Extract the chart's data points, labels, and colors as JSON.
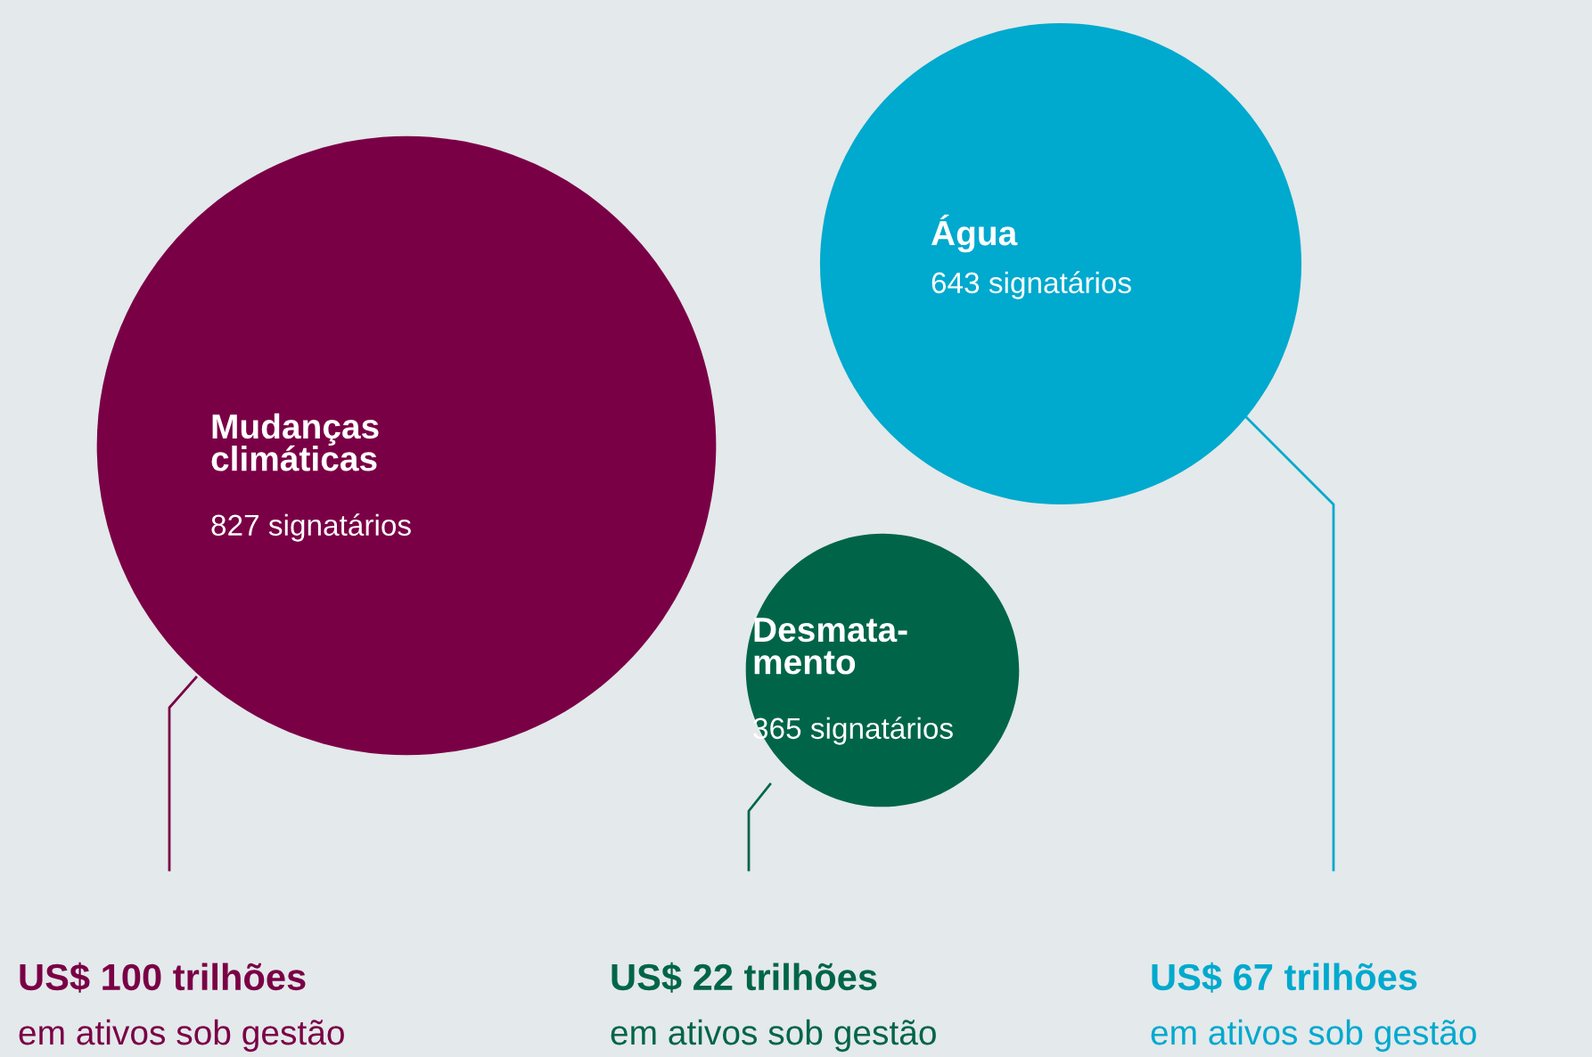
{
  "chart_data": {
    "type": "other",
    "categories": [
      "Mudanças\nclimáticas",
      "Água",
      "Desmata-\nmento"
    ],
    "values": [
      827,
      643,
      365
    ],
    "value_labels": [
      "827 signatários",
      "643 signatários",
      "365 signatários"
    ],
    "colors": [
      "#7a0046",
      "#00a9ce",
      "#006548"
    ],
    "annotations": [
      "US$ 100 trilhões\nem ativos sob gestão",
      "US$ 67 trilhões\nem ativos sob gestão",
      "US$ 22 trilhões\nem ativos sob gestão"
    ]
  }
}
